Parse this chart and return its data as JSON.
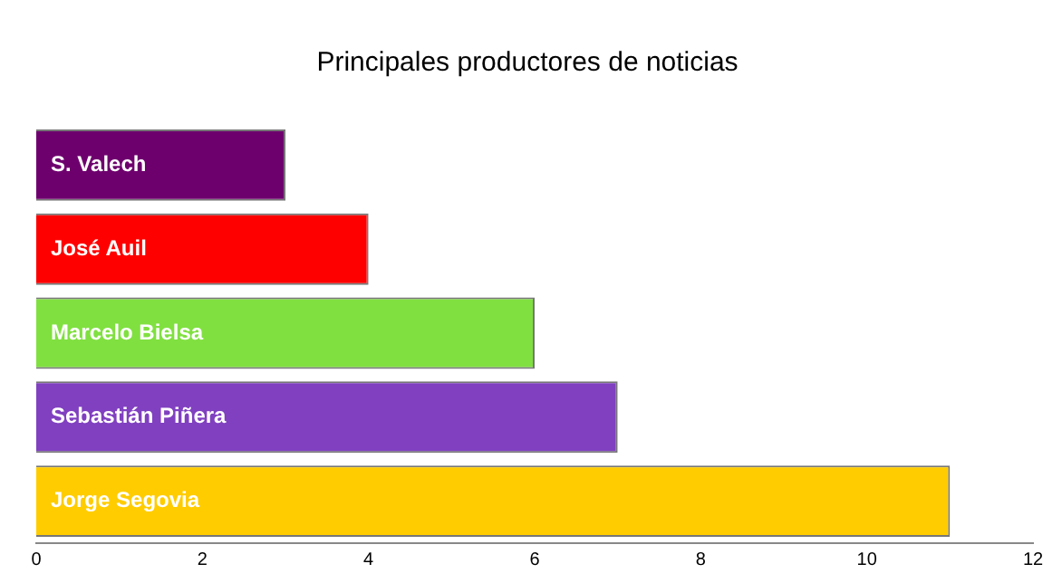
{
  "chart_data": {
    "type": "bar",
    "orientation": "horizontal",
    "title": "Principales productores de noticias",
    "categories": [
      "S. Valech",
      "José Auil",
      "Marcelo Bielsa",
      "Sebastián Piñera",
      "Jorge Segovia"
    ],
    "values": [
      3,
      4,
      6,
      7,
      11
    ],
    "colors": [
      "#6e006e",
      "#ff0000",
      "#80e040",
      "#8040c0",
      "#ffcc00"
    ],
    "xlim": [
      0,
      12
    ],
    "xticks": [
      0,
      2,
      4,
      6,
      8,
      10,
      12
    ],
    "grid": false,
    "legend": false
  }
}
